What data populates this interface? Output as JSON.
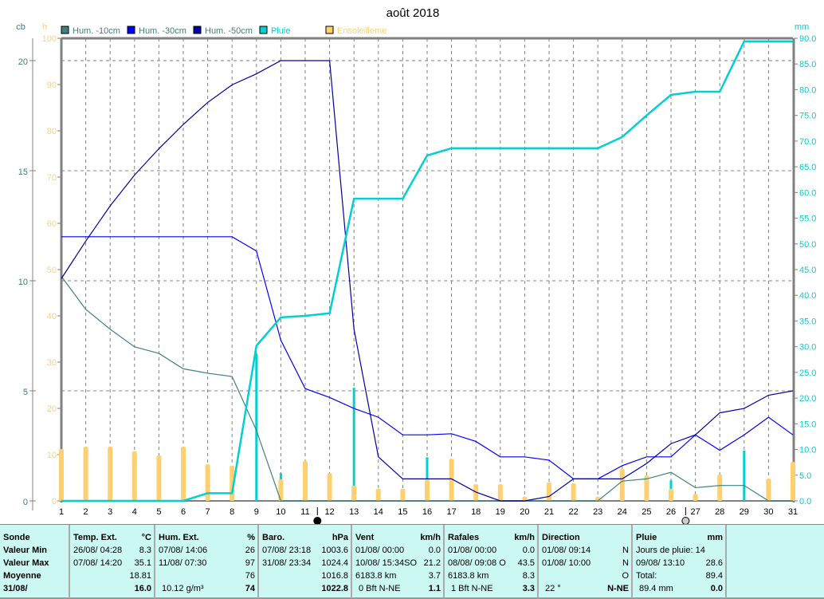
{
  "title": "août 2018",
  "axes": {
    "cb_unit": "cb",
    "h_unit": "h",
    "mm_unit": "mm"
  },
  "colors": {
    "hum10": "#408080",
    "hum30": "#0000ff",
    "hum50": "#0000a0",
    "pluie": "#00d0d0",
    "soleil": "#ffd070",
    "grid": "#808080",
    "background_table": "#ccf8f4"
  },
  "chart_data": {
    "type": "line",
    "title": "août 2018",
    "x": [
      1,
      2,
      3,
      4,
      5,
      6,
      7,
      8,
      9,
      10,
      11,
      12,
      13,
      14,
      15,
      16,
      17,
      18,
      19,
      20,
      21,
      22,
      23,
      24,
      25,
      26,
      27,
      28,
      29,
      30,
      31
    ],
    "axes": {
      "cb": {
        "ticks": [
          0,
          5,
          10,
          15,
          20
        ],
        "range": [
          0,
          21.0
        ]
      },
      "h": {
        "ticks": [
          0,
          10,
          20,
          30,
          40,
          50,
          60,
          70,
          80,
          90,
          100
        ],
        "range": [
          0,
          100
        ]
      },
      "mm": {
        "ticks": [
          "0.0",
          "5.0",
          "10.0",
          "15.0",
          "20.0",
          "25.0",
          "30.0",
          "35.0",
          "40.0",
          "45.0",
          "50.0",
          "55.0",
          "60.0",
          "65.0",
          "70.0",
          "75.0",
          "80.0",
          "85.0",
          "90.0"
        ],
        "range": [
          0,
          90
        ]
      }
    },
    "grid": true,
    "legend": "top",
    "series": [
      {
        "name": "Hum. -10cm",
        "axis": "cb",
        "kind": "line",
        "color": "#408080",
        "values": [
          10.2,
          8.7,
          7.8,
          7.0,
          6.7,
          6.0,
          5.8,
          5.65,
          3.2,
          0,
          0,
          0,
          0,
          0,
          0,
          0,
          0,
          0,
          0,
          0,
          0,
          0,
          0,
          0.9,
          1.0,
          1.3,
          0.6,
          0.7,
          0.7,
          0,
          0
        ]
      },
      {
        "name": "Hum. -30cm",
        "axis": "cb",
        "kind": "line",
        "color": "#0000ff",
        "values": [
          12.0,
          12.0,
          12.0,
          12.0,
          12.0,
          12.0,
          12.0,
          12.0,
          11.35,
          7.3,
          5.1,
          4.7,
          4.2,
          3.8,
          3.0,
          3.0,
          3.05,
          2.7,
          2.0,
          2.0,
          1.85,
          1.0,
          1.0,
          1.6,
          2.0,
          2.0,
          3.0,
          2.3,
          3.0,
          3.8,
          3.0
        ]
      },
      {
        "name": "Hum. -50cm",
        "axis": "cb",
        "kind": "line",
        "color": "#0000a0",
        "values": [
          10.1,
          11.8,
          13.4,
          14.8,
          16.0,
          17.1,
          18.1,
          18.9,
          19.4,
          20.0,
          20.0,
          20.0,
          7.8,
          2.0,
          1.0,
          1.0,
          1.0,
          0.4,
          0,
          0,
          0.2,
          1.0,
          1.0,
          1.0,
          1.7,
          2.6,
          3.0,
          4.0,
          4.2,
          4.8,
          5.0
        ]
      },
      {
        "name": "Pluie",
        "axis": "mm",
        "kind": "bar",
        "color": "#00d0d0",
        "values": [
          0,
          0,
          0,
          0,
          0,
          0,
          1.4,
          0.2,
          28.6,
          5.4,
          0.5,
          0.7,
          22.0,
          0,
          0,
          8.5,
          1.5,
          0,
          0,
          0,
          0,
          0,
          0,
          2.3,
          3.7,
          4.0,
          0.8,
          0,
          9.8,
          0,
          0
        ]
      },
      {
        "name": "Pluie",
        "axis": "mm",
        "kind": "cumulative",
        "color": "#00d0d0",
        "values": [
          0,
          0,
          0,
          0,
          0,
          0,
          1.5,
          1.5,
          30.2,
          35.7,
          36.0,
          36.5,
          58.8,
          58.8,
          58.8,
          67.2,
          68.6,
          68.6,
          68.6,
          68.6,
          68.6,
          68.6,
          68.6,
          70.8,
          75.0,
          79.0,
          79.6,
          79.6,
          89.4,
          89.4,
          89.4
        ]
      },
      {
        "name": "Ensoleilleme",
        "axis": "h",
        "kind": "bar",
        "color": "#ffd070",
        "values": [
          11.2,
          11.7,
          11.7,
          10.7,
          9.8,
          11.7,
          7.9,
          7.6,
          0,
          4.7,
          8.6,
          6.0,
          3.3,
          2.6,
          2.6,
          4.8,
          9.1,
          3.6,
          3.6,
          0.9,
          4.0,
          3.8,
          0.9,
          6.9,
          5.5,
          2.6,
          1.5,
          5.7,
          0,
          4.8,
          8.4
        ]
      }
    ],
    "moon_phases": [
      {
        "phase": "full-moon",
        "day": 11.5
      },
      {
        "phase": "new-moon",
        "day": 26.6
      }
    ]
  },
  "stats": {
    "sonde": {
      "header": "Sonde",
      "rows": [
        "Valeur Min",
        "Valeur Max",
        "Moyenne",
        "31/08/"
      ]
    },
    "temp": {
      "header": "Temp. Ext.",
      "unit": "°C",
      "rows": [
        [
          "26/08/  04:28",
          "8.3"
        ],
        [
          "07/08/  14:20",
          "35.1"
        ],
        [
          "",
          "18.81"
        ],
        [
          "",
          "16.0"
        ]
      ]
    },
    "hum": {
      "header": "Hum. Ext.",
      "unit": "%",
      "rows": [
        [
          "07/08/  14:06",
          "26"
        ],
        [
          "11/08/  07:30",
          "97"
        ],
        [
          "",
          "76"
        ],
        [
          "10.12 g/m³",
          "74"
        ]
      ]
    },
    "baro": {
      "header": "Baro.",
      "unit": "hPa",
      "rows": [
        [
          "07/08/  23:18",
          "1003.6"
        ],
        [
          "31/08/  23:34",
          "1024.4"
        ],
        [
          "",
          "1016.8"
        ],
        [
          "",
          "1022.8"
        ]
      ]
    },
    "vent": {
      "header": "Vent",
      "unit": "km/h",
      "rows": [
        [
          "01/08/  00:00",
          "0.0"
        ],
        [
          "10/08/  15:34SO",
          "21.2"
        ],
        [
          "6183.8 km",
          "3.7"
        ],
        [
          "0 Bft N-NE",
          "1.1"
        ]
      ]
    },
    "rafales": {
      "header": "Rafales",
      "unit": "km/h",
      "rows": [
        [
          "01/08/  00:00",
          "0.0"
        ],
        [
          "08/08/  09:08  O",
          "43.5"
        ],
        [
          "6183.8 km",
          "8.3"
        ],
        [
          "1 Bft N-NE",
          "3.3"
        ]
      ]
    },
    "direction": {
      "header": "Direction",
      "unit": "",
      "rows": [
        [
          "01/08/  09:14",
          "N"
        ],
        [
          "01/08/  10:00",
          "N"
        ],
        [
          "",
          "O"
        ],
        [
          "22 °",
          "N-NE"
        ]
      ]
    },
    "pluie": {
      "header": "Pluie",
      "unit": "mm",
      "rows": [
        [
          "Jours de pluie: 14",
          ""
        ],
        [
          "09/08/  13:10",
          "28.6"
        ],
        [
          "Total:",
          "89.4"
        ],
        [
          "89.4 mm",
          "0.0"
        ]
      ]
    }
  }
}
